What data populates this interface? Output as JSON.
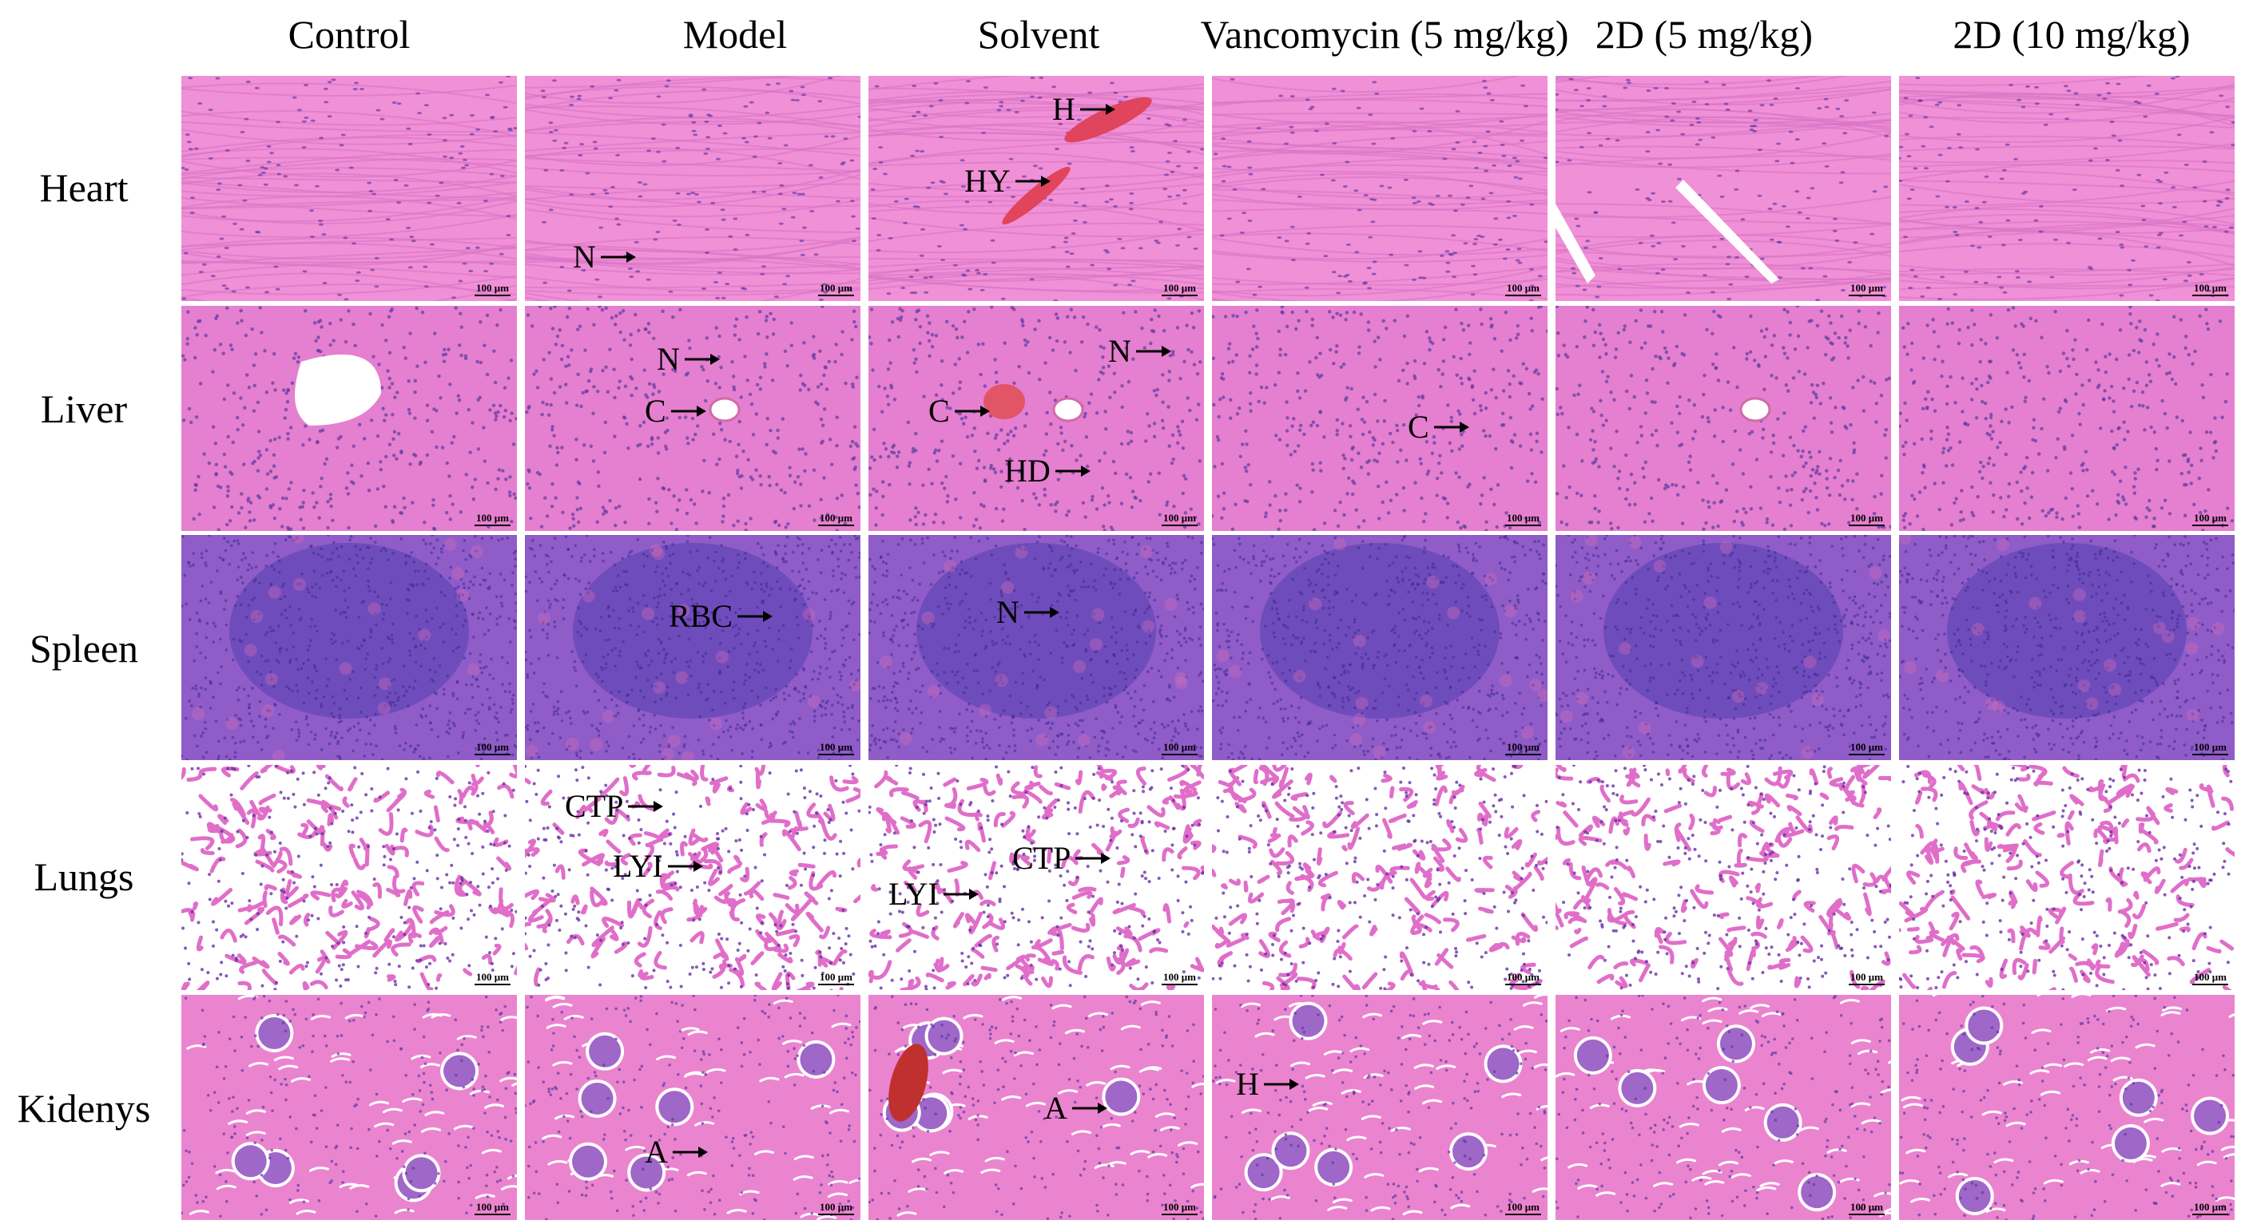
{
  "columns": [
    "Control",
    "Model",
    "Solvent",
    "Vancomycin (5 mg/kg)",
    "2D (5 mg/kg)",
    "2D (10 mg/kg)"
  ],
  "rows": [
    "Heart",
    "Liver",
    "Spleen",
    "Lungs",
    "Kidenys"
  ],
  "scale_bar": "100 μm",
  "annotations": [
    {
      "row": 0,
      "col": 1,
      "label": "N"
    },
    {
      "row": 0,
      "col": 2,
      "label": "H"
    },
    {
      "row": 0,
      "col": 2,
      "label": "HY"
    },
    {
      "row": 1,
      "col": 1,
      "label": "N"
    },
    {
      "row": 1,
      "col": 1,
      "label": "C"
    },
    {
      "row": 1,
      "col": 2,
      "label": "C"
    },
    {
      "row": 1,
      "col": 2,
      "label": "N"
    },
    {
      "row": 1,
      "col": 2,
      "label": "HD"
    },
    {
      "row": 1,
      "col": 3,
      "label": "C"
    },
    {
      "row": 2,
      "col": 1,
      "label": "RBC"
    },
    {
      "row": 2,
      "col": 2,
      "label": "N"
    },
    {
      "row": 3,
      "col": 1,
      "label": "CTP"
    },
    {
      "row": 3,
      "col": 1,
      "label": "LYI"
    },
    {
      "row": 3,
      "col": 2,
      "label": "CTP"
    },
    {
      "row": 3,
      "col": 2,
      "label": "LYI"
    },
    {
      "row": 4,
      "col": 1,
      "label": "A"
    },
    {
      "row": 4,
      "col": 2,
      "label": "A"
    },
    {
      "row": 4,
      "col": 3,
      "label": "H"
    }
  ],
  "tissue_colors": {
    "Heart": "#f090d6",
    "Liver": "#e57fcf",
    "Spleen": "#8f5cc8",
    "Lungs": "#ffffff",
    "Kidenys": "#eb84cf"
  },
  "icons": {
    "annotation_pointer": "arrow-right-icon",
    "scale": "scale-bar"
  }
}
